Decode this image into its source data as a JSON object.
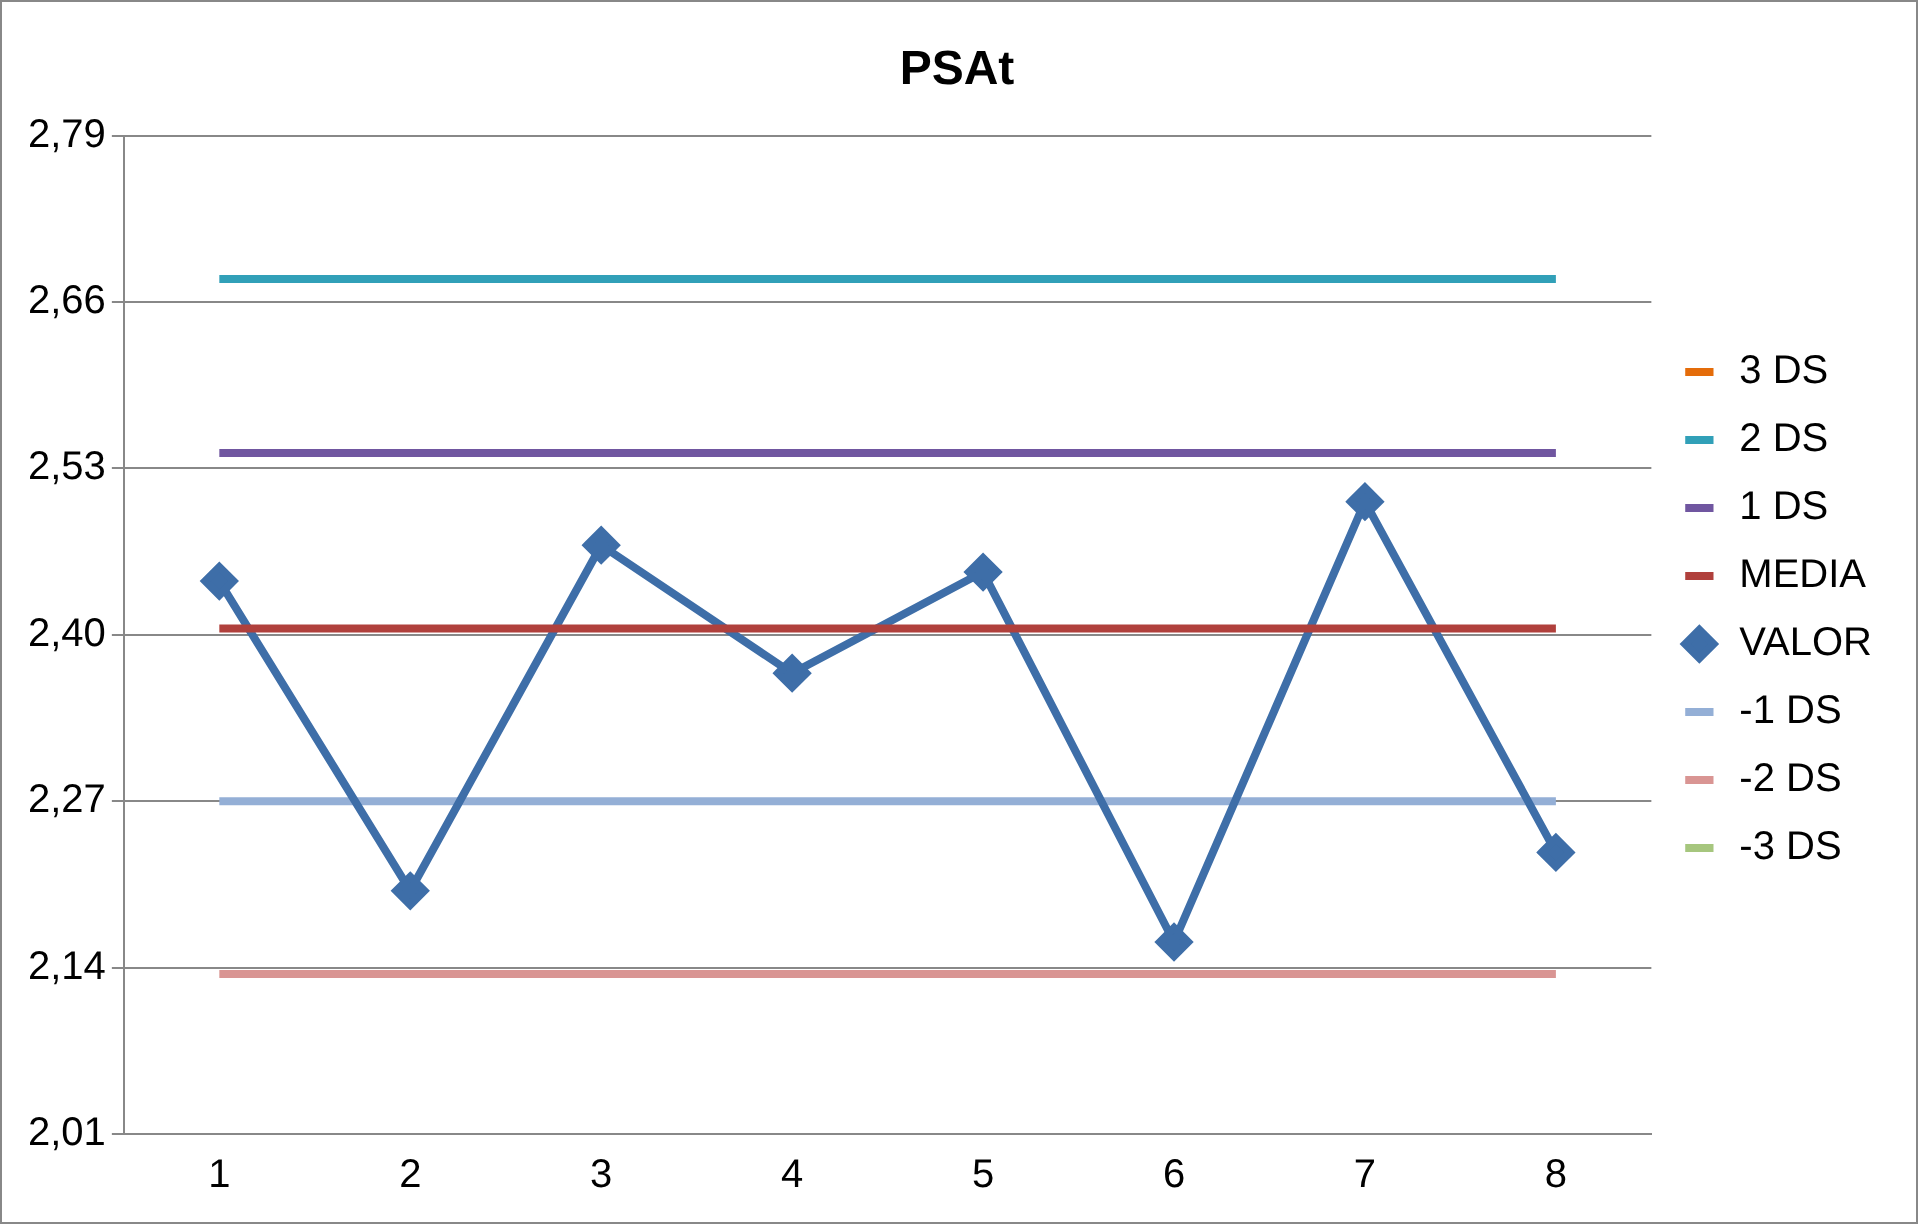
{
  "chart_data": {
    "type": "line",
    "title": "PSAt",
    "categories": [
      "1",
      "2",
      "3",
      "4",
      "5",
      "6",
      "7",
      "8"
    ],
    "ylim": [
      2.01,
      2.79
    ],
    "yticks": [
      {
        "value": 2.01,
        "label": "2,01"
      },
      {
        "value": 2.14,
        "label": "2,14"
      },
      {
        "value": 2.27,
        "label": "2,27"
      },
      {
        "value": 2.4,
        "label": "2,40"
      },
      {
        "value": 2.53,
        "label": "2,53"
      },
      {
        "value": 2.66,
        "label": "2,66"
      },
      {
        "value": 2.79,
        "label": "2,79"
      }
    ],
    "grid": "y",
    "legend": "right",
    "marker": "none",
    "line_style": "solid",
    "series": [
      {
        "name": "3 DS",
        "color": "#e46c0a",
        "values": [
          null,
          null,
          null,
          null,
          null,
          null,
          null,
          null
        ]
      },
      {
        "name": "2 DS",
        "color": "#31a0b8",
        "values": [
          2.678,
          2.678,
          2.678,
          2.678,
          2.678,
          2.678,
          2.678,
          2.678
        ]
      },
      {
        "name": "1 DS",
        "color": "#7056a0",
        "values": [
          2.542,
          2.542,
          2.542,
          2.542,
          2.542,
          2.542,
          2.542,
          2.542
        ]
      },
      {
        "name": "MEDIA",
        "color": "#b0403c",
        "values": [
          2.405,
          2.405,
          2.405,
          2.405,
          2.405,
          2.405,
          2.405,
          2.405
        ]
      },
      {
        "name": "VALOR",
        "color": "#3e6ea8",
        "marker": "diamond",
        "values": [
          2.442,
          2.2,
          2.47,
          2.37,
          2.449,
          2.16,
          2.504,
          2.23
        ]
      },
      {
        "name": "-1 DS",
        "color": "#94afd6",
        "values": [
          2.27,
          2.27,
          2.27,
          2.27,
          2.27,
          2.27,
          2.27,
          2.27
        ]
      },
      {
        "name": "-2 DS",
        "color": "#d99593",
        "values": [
          2.135,
          2.135,
          2.135,
          2.135,
          2.135,
          2.135,
          2.135,
          2.135
        ]
      },
      {
        "name": "-3 DS",
        "color": "#a6c67e",
        "values": [
          null,
          null,
          null,
          null,
          null,
          null,
          null,
          null
        ]
      }
    ]
  }
}
